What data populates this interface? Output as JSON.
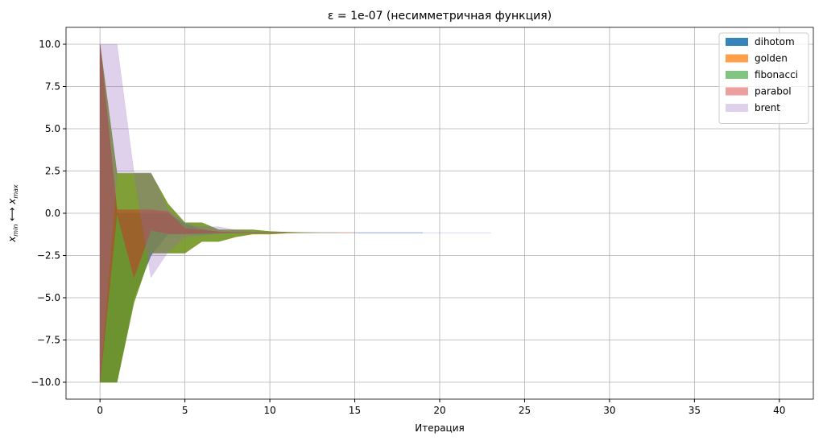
{
  "chart_data": {
    "type": "band",
    "title": "ε = 1e-07 (несимметричная функция)",
    "x_label": "Итерация",
    "y_label_parts": [
      "x",
      "min",
      " ⟷ ",
      "x",
      "max"
    ],
    "xlim": [
      -2,
      42
    ],
    "xticks": [
      0,
      5,
      10,
      15,
      20,
      25,
      30,
      35,
      40
    ],
    "ylim": [
      -11,
      11
    ],
    "yticks": [
      {
        "value": -10,
        "label": "−10.0"
      },
      {
        "value": -7.5,
        "label": "−7.5"
      },
      {
        "value": -5,
        "label": "−5.0"
      },
      {
        "value": -2.5,
        "label": "−2.5"
      },
      {
        "value": 0,
        "label": "0.0"
      },
      {
        "value": 2.5,
        "label": "2.5"
      },
      {
        "value": 5,
        "label": "5.0"
      },
      {
        "value": 7.5,
        "label": "7.5"
      },
      {
        "value": 10,
        "label": "10.0"
      }
    ],
    "grid": true,
    "legend": "upper-right",
    "series": [
      {
        "name": "dihotom",
        "color": "#1f77b4",
        "opacity": 0.9,
        "lower": [
          -10,
          -10,
          -5,
          -2.5,
          -1.25,
          -1.25,
          -1.25,
          -1.17,
          -1.17,
          -1.16,
          -1.155,
          -1.153,
          -1.152,
          -1.152,
          -1.152,
          -1.152,
          -1.152,
          -1.152,
          -1.152,
          -1.152
        ],
        "upper": [
          10,
          0,
          0,
          0,
          0,
          -0.63,
          -0.94,
          -1.09,
          -1.13,
          -1.14,
          -1.148,
          -1.15,
          -1.151,
          -1.152,
          -1.152,
          -1.152,
          -1.152,
          -1.152,
          -1.152,
          -1.152
        ]
      },
      {
        "name": "golden",
        "color": "#ff7f0e",
        "opacity": 0.75,
        "lower": [
          -10,
          -10,
          -5.28,
          -2.36,
          -2.36,
          -2.36,
          -1.67,
          -1.67,
          -1.4,
          -1.24,
          -1.24,
          -1.18,
          -1.16,
          -1.155,
          -1.152,
          -1.152
        ],
        "upper": [
          10,
          2.36,
          2.36,
          2.36,
          0.56,
          -0.56,
          -0.56,
          -0.98,
          -0.98,
          -0.98,
          -1.08,
          -1.12,
          -1.14,
          -1.148,
          -1.15,
          -1.152
        ]
      },
      {
        "name": "fibonacci",
        "color": "#2ca02c",
        "opacity": 0.6,
        "lower": [
          -10,
          -10,
          -5.28,
          -2.36,
          -2.36,
          -2.36,
          -1.67,
          -1.67,
          -1.39,
          -1.22,
          -1.22,
          -1.17,
          -1.16,
          -1.155,
          -1.152
        ],
        "upper": [
          10,
          2.36,
          2.36,
          2.36,
          0.56,
          -0.56,
          -0.56,
          -0.98,
          -0.98,
          -0.98,
          -1.08,
          -1.12,
          -1.14,
          -1.15,
          -1.152
        ]
      },
      {
        "name": "parabol",
        "color": "#d62728",
        "opacity": 0.45,
        "lower": [
          -10,
          0,
          -3.8,
          -1.0,
          -1.2,
          -1.2,
          -1.17,
          -1.16,
          -1.155,
          -1.153,
          -1.152,
          -1.152
        ],
        "upper": [
          10,
          0.2,
          0.2,
          0.2,
          0.1,
          -0.9,
          -1.0,
          -1.1,
          -1.14,
          -1.15,
          -1.152,
          -1.152
        ]
      },
      {
        "name": "brent",
        "color": "#9467bd",
        "opacity": 0.3,
        "lower": [
          -10,
          2.4,
          2.4,
          -3.8,
          -2.3,
          -1.4,
          -1.3,
          -1.2,
          -1.17,
          -1.16,
          -1.155,
          -1.153,
          -1.152,
          -1.152,
          -1.152,
          -1.152,
          -1.152,
          -1.152,
          -1.152,
          -1.152,
          -1.152,
          -1.152,
          -1.152,
          -1.152
        ],
        "upper": [
          10,
          10,
          2.4,
          2.4,
          0.2,
          -0.6,
          -0.8,
          -0.8,
          -1.0,
          -1.1,
          -1.13,
          -1.145,
          -1.15,
          -1.151,
          -1.152,
          -1.152,
          -1.152,
          -1.152,
          -1.152,
          -1.152,
          -1.152,
          -1.152,
          -1.152,
          -1.152
        ]
      }
    ]
  }
}
